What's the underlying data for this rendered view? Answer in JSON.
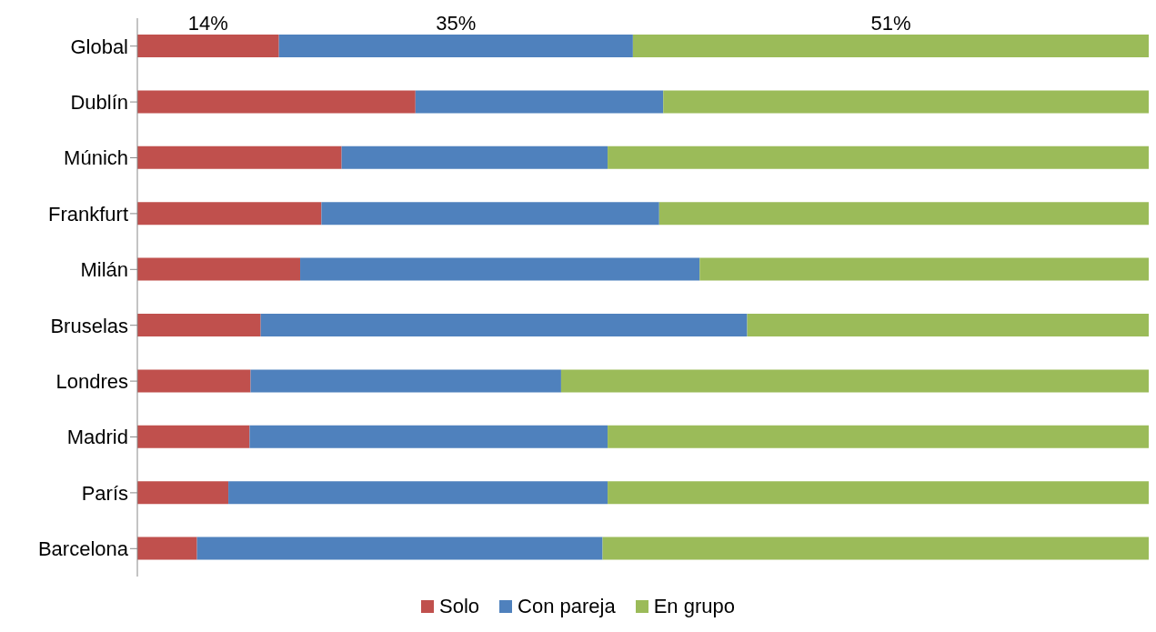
{
  "chart_data": {
    "type": "bar",
    "orientation": "horizontal",
    "stacked": true,
    "xlim": [
      0,
      100
    ],
    "tick_labels": "y",
    "categories": [
      "Global",
      "Dublín",
      "Múnich",
      "Frankfurt",
      "Milán",
      "Bruselas",
      "Londres",
      "Madrid",
      "París",
      "Barcelona"
    ],
    "series": [
      {
        "name": "Solo",
        "color": "#c0504d",
        "values": [
          14,
          27.5,
          20.2,
          18.2,
          16.1,
          12.2,
          11.2,
          11.1,
          9,
          5.9
        ],
        "value_labels": [
          "14%",
          null,
          null,
          null,
          null,
          null,
          null,
          null,
          null,
          null
        ]
      },
      {
        "name": "Con pareja",
        "color": "#4f81bd",
        "values": [
          35,
          24.5,
          26.3,
          33.4,
          39.5,
          48.1,
          30.7,
          35.4,
          37.5,
          40.1
        ],
        "value_labels": [
          "35%",
          null,
          null,
          null,
          null,
          null,
          null,
          null,
          null,
          null
        ]
      },
      {
        "name": "En grupo",
        "color": "#9bbb59",
        "values": [
          51,
          48,
          53.5,
          48.4,
          44.4,
          39.7,
          58.1,
          53.5,
          53.5,
          54
        ],
        "value_labels": [
          "51%",
          null,
          null,
          null,
          null,
          null,
          null,
          null,
          null,
          null
        ]
      }
    ],
    "legend": "bottom",
    "grid": false
  }
}
